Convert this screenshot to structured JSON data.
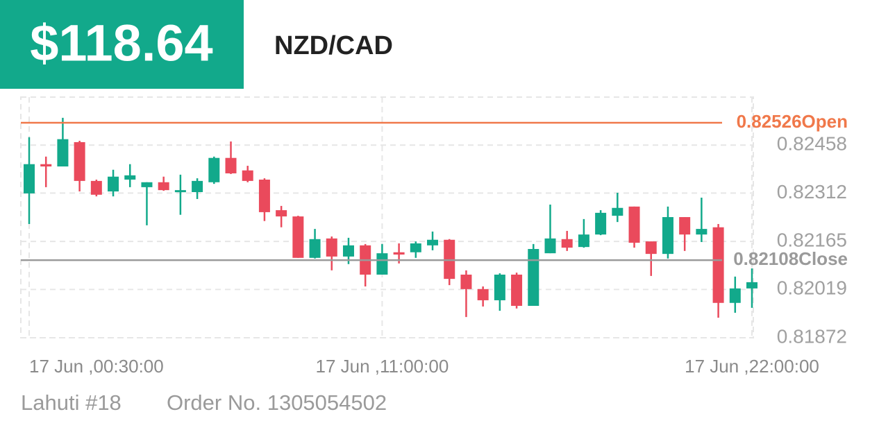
{
  "header": {
    "price": "$118.64",
    "symbol": "NZD/CAD"
  },
  "footer": {
    "account": "Lahuti #18",
    "order": "Order No. 1305054502"
  },
  "chart_data": {
    "type": "candlestick",
    "categories": [
      "17 Jun ,00:30:00",
      null,
      null,
      null,
      null,
      null,
      null,
      null,
      null,
      null,
      null,
      null,
      null,
      null,
      null,
      null,
      null,
      null,
      null,
      null,
      null,
      "17 Jun ,11:00:00",
      null,
      null,
      null,
      null,
      null,
      null,
      null,
      null,
      null,
      null,
      null,
      null,
      null,
      null,
      null,
      null,
      null,
      null,
      null,
      null,
      null,
      "17 Jun ,22:00:00"
    ],
    "open": [
      0.82311,
      0.824,
      0.82393,
      0.82467,
      0.82349,
      0.82317,
      0.82353,
      0.8233,
      0.82345,
      0.82317,
      0.82315,
      0.82345,
      0.82419,
      0.82381,
      0.82353,
      0.8226,
      0.82241,
      0.82115,
      0.82174,
      0.82119,
      0.82153,
      0.82064,
      0.82132,
      0.82132,
      0.82153,
      0.8217,
      0.82064,
      0.8202,
      0.81986,
      0.82064,
      0.81969,
      0.82129,
      0.82172,
      0.82148,
      0.82186,
      0.82243,
      0.82271,
      0.82165,
      0.82127,
      0.82239,
      0.82186,
      0.82208,
      0.81978,
      0.82022
    ],
    "high": [
      0.82482,
      0.82423,
      0.82541,
      0.82471,
      0.82353,
      0.82383,
      0.824,
      0.82345,
      0.82362,
      0.82368,
      0.82357,
      0.82423,
      0.82469,
      0.82395,
      0.82357,
      0.82273,
      0.82243,
      0.82203,
      0.8218,
      0.82176,
      0.82157,
      0.82157,
      0.82159,
      0.82165,
      0.82195,
      0.82172,
      0.82077,
      0.82028,
      0.82068,
      0.8207,
      0.82157,
      0.82277,
      0.82197,
      0.82233,
      0.8226,
      0.82313,
      0.82271,
      0.82165,
      0.82271,
      0.82239,
      0.82298,
      0.82218,
      0.82058,
      0.82083
    ],
    "low": [
      0.82218,
      0.8233,
      0.82393,
      0.82317,
      0.82302,
      0.82302,
      0.8233,
      0.82214,
      0.82319,
      0.82246,
      0.82294,
      0.8234,
      0.8237,
      0.82345,
      0.82227,
      0.82208,
      0.82115,
      0.82113,
      0.82077,
      0.82096,
      0.82028,
      0.82064,
      0.82098,
      0.82115,
      0.82138,
      0.82032,
      0.81935,
      0.81967,
      0.81954,
      0.81961,
      0.81969,
      0.82129,
      0.82136,
      0.82146,
      0.82184,
      0.82224,
      0.82146,
      0.8206,
      0.82113,
      0.82136,
      0.82163,
      0.81933,
      0.81948,
      0.81963
    ],
    "close": [
      0.824,
      0.82393,
      0.82476,
      0.82349,
      0.82307,
      0.82362,
      0.82366,
      0.82345,
      0.82321,
      0.82321,
      0.82349,
      0.82419,
      0.82372,
      0.82349,
      0.82254,
      0.82241,
      0.82115,
      0.82172,
      0.82119,
      0.82153,
      0.82064,
      0.82129,
      0.82125,
      0.82159,
      0.8217,
      0.82051,
      0.8202,
      0.81986,
      0.82064,
      0.81969,
      0.82142,
      0.82174,
      0.82146,
      0.82186,
      0.82252,
      0.82267,
      0.82161,
      0.82127,
      0.82239,
      0.82186,
      0.82203,
      0.81978,
      0.82022,
      0.82041
    ],
    "up_color": "#12a98b",
    "down_color": "#ea4a5c",
    "ylim": [
      0.81872,
      0.82604
    ],
    "yticks": [
      0.82458,
      0.82312,
      0.82165,
      0.82019,
      0.81872
    ],
    "grid": true,
    "hlines": [
      {
        "value": 0.82526,
        "label": "0.82526Open",
        "color": "#f0784a"
      },
      {
        "value": 0.82108,
        "label": "0.82108Close",
        "color": "#9a9a9a"
      }
    ]
  }
}
